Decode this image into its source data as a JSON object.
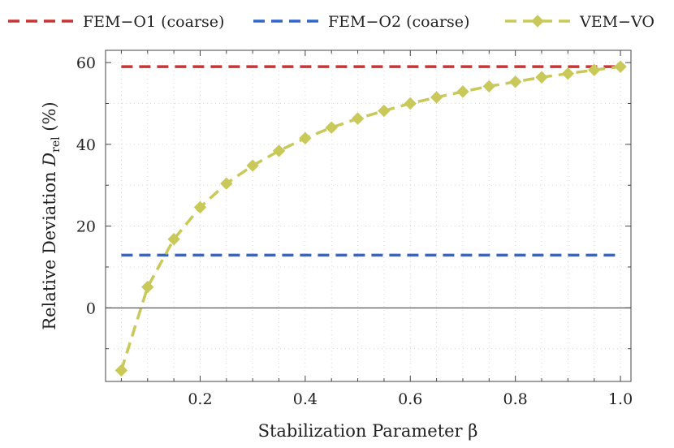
{
  "chart_data": {
    "type": "line",
    "xlabel": "Stabilization Parameter β",
    "ylabel_main": "Relative Deviation ",
    "ylabel_symbol": "D",
    "ylabel_subscript": "rel",
    "ylabel_unit": " (%)",
    "xlim": [
      0.02,
      1.02
    ],
    "ylim": [
      -18,
      63
    ],
    "x_ticks": [
      0.2,
      0.4,
      0.6,
      0.8,
      1.0
    ],
    "x_tick_labels": [
      "0.2",
      "0.4",
      "0.6",
      "0.8",
      "1.0"
    ],
    "y_ticks": [
      0,
      20,
      40,
      60
    ],
    "y_tick_labels": [
      "0",
      "20",
      "40",
      "60"
    ],
    "grid": true,
    "legend_position": "top",
    "series": [
      {
        "name": "FEM−O1 (coarse)",
        "color": "#cc3333",
        "style": "dashed",
        "marker": "none",
        "x": [
          0.05,
          1.0
        ],
        "y": [
          59.0,
          59.0
        ]
      },
      {
        "name": "FEM−O2 (coarse)",
        "color": "#3366cc",
        "style": "dashed",
        "marker": "none",
        "x": [
          0.05,
          1.0
        ],
        "y": [
          12.9,
          12.9
        ]
      },
      {
        "name": "VEM−VO",
        "color": "#c9c95a",
        "style": "dashed",
        "marker": "diamond",
        "x": [
          0.05,
          0.1,
          0.15,
          0.2,
          0.25,
          0.3,
          0.35,
          0.4,
          0.45,
          0.5,
          0.55,
          0.6,
          0.65,
          0.7,
          0.75,
          0.8,
          0.85,
          0.9,
          0.95,
          1.0
        ],
        "y": [
          -15.3,
          5.1,
          16.8,
          24.6,
          30.4,
          34.8,
          38.4,
          41.5,
          44.1,
          46.3,
          48.2,
          50.0,
          51.5,
          52.9,
          54.2,
          55.3,
          56.4,
          57.3,
          58.2,
          59.0
        ]
      }
    ]
  }
}
